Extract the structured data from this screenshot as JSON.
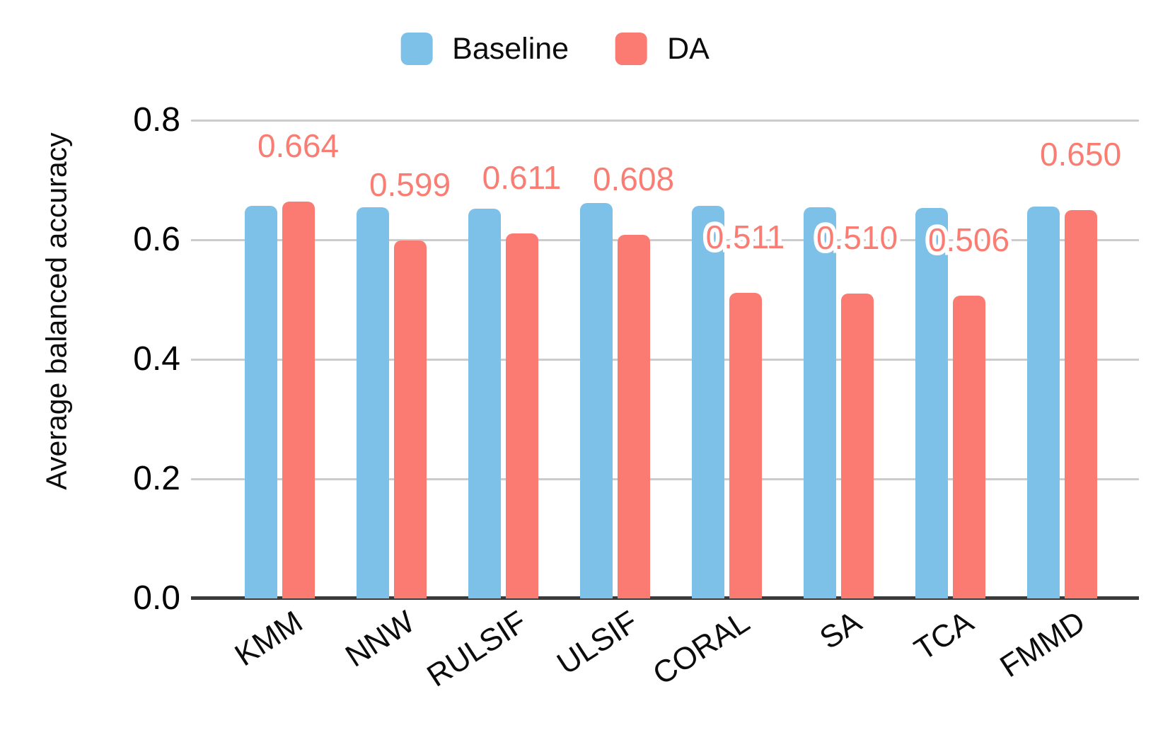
{
  "chart_data": {
    "type": "bar",
    "title": "",
    "categories": [
      "KMM",
      "NNW",
      "RULSIF",
      "ULSIF",
      "CORAL",
      "SA",
      "TCA",
      "FMMD"
    ],
    "series": [
      {
        "name": "Baseline",
        "color": "#7DC1E8",
        "values": [
          0.657,
          0.654,
          0.652,
          0.662,
          0.657,
          0.654,
          0.653,
          0.656
        ]
      },
      {
        "name": "DA",
        "color": "#FB7B72",
        "values": [
          0.664,
          0.599,
          0.611,
          0.608,
          0.511,
          0.51,
          0.506,
          0.65
        ]
      }
    ],
    "value_labels": {
      "series": "DA",
      "texts": [
        "0.664",
        "0.599",
        "0.611",
        "0.608",
        "0.511",
        "0.510",
        "0.506",
        "0.650"
      ],
      "color": "#FA7D73",
      "outline_color": "#FFFFFF"
    },
    "xlabel": "",
    "ylabel": "Average balanced accuracy",
    "ylim": [
      0,
      0.8
    ],
    "yticks": [
      {
        "value": 0.0,
        "label": "0.0"
      },
      {
        "value": 0.2,
        "label": "0.2"
      },
      {
        "value": 0.4,
        "label": "0.4"
      },
      {
        "value": 0.6,
        "label": "0.6"
      },
      {
        "value": 0.8,
        "label": "0.8"
      }
    ],
    "grid": true,
    "legend_position": "top"
  },
  "legend": {
    "items": [
      {
        "label": "Baseline",
        "color": "#7DC1E8"
      },
      {
        "label": "DA",
        "color": "#FB7B72"
      }
    ]
  },
  "colors": {
    "background": "#FFFFFF",
    "gridline": "#CCCCCC",
    "axis_line": "#3A3A3A",
    "tick_text": "#000000"
  }
}
